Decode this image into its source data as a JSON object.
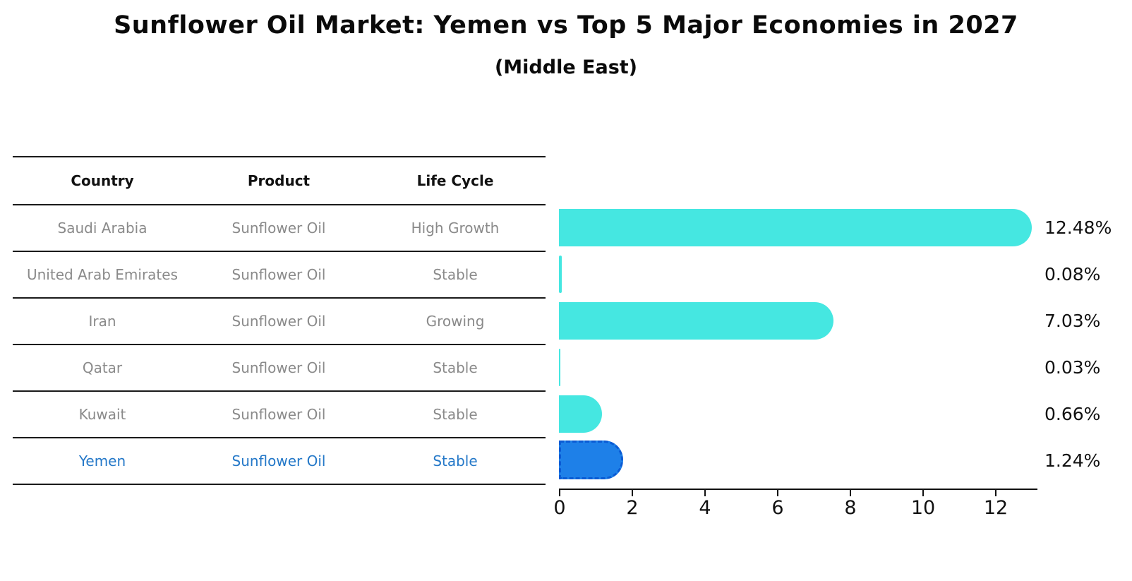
{
  "title": "Sunflower Oil Market: Yemen vs Top 5 Major Economies in 2027",
  "subtitle": "(Middle East)",
  "table": {
    "headers": [
      "Country",
      "Product",
      "Life Cycle"
    ],
    "rows": [
      {
        "country": "Saudi Arabia",
        "product": "Sunflower Oil",
        "life_cycle": "High Growth",
        "value_label": "12.48%",
        "highlighted": false
      },
      {
        "country": "United Arab Emirates",
        "product": "Sunflower Oil",
        "life_cycle": "Stable",
        "value_label": "0.08%",
        "highlighted": false
      },
      {
        "country": "Iran",
        "product": "Sunflower Oil",
        "life_cycle": "Growing",
        "value_label": "7.03%",
        "highlighted": false
      },
      {
        "country": "Qatar",
        "product": "Sunflower Oil",
        "life_cycle": "Stable",
        "value_label": "0.03%",
        "highlighted": false
      },
      {
        "country": "Kuwait",
        "product": "Sunflower Oil",
        "life_cycle": "Stable",
        "value_label": "0.66%",
        "highlighted": false
      },
      {
        "country": "Yemen",
        "product": "Sunflower Oil",
        "life_cycle": "Stable",
        "value_label": "1.24%",
        "highlighted": true
      }
    ]
  },
  "chart_data": {
    "type": "bar",
    "orientation": "horizontal",
    "title": "Sunflower Oil Market: Yemen vs Top 5 Major Economies in 2027",
    "subtitle": "(Middle East)",
    "categories": [
      "Saudi Arabia",
      "United Arab Emirates",
      "Iran",
      "Qatar",
      "Kuwait",
      "Yemen"
    ],
    "values": [
      12.48,
      0.08,
      7.03,
      0.03,
      0.66,
      1.24
    ],
    "value_labels": [
      "12.48%",
      "0.08%",
      "7.03%",
      "0.03%",
      "0.66%",
      "1.24%"
    ],
    "unit": "percent",
    "xlim": [
      0,
      13.2
    ],
    "x_ticks": [
      0,
      2,
      4,
      6,
      8,
      10,
      12
    ],
    "grid": false,
    "legend": false,
    "highlight_index": 5,
    "bar_color": "#45e7e1",
    "highlight_bar_color": "#1e80e8",
    "highlight_border_color": "#0a5bd4",
    "highlight_text_color": "#2478c8",
    "table_text_color": "#8a8a8a",
    "axis_color": "#111111"
  }
}
